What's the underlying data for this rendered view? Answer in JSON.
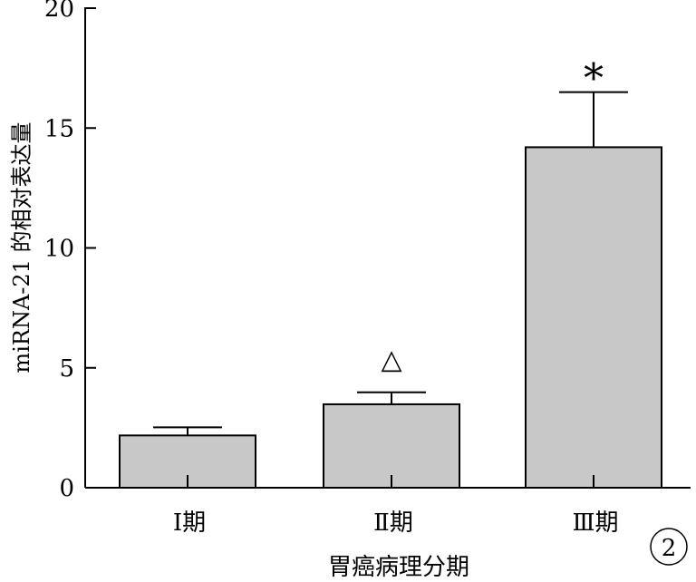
{
  "chart_data": {
    "type": "bar",
    "title": "",
    "xlabel": "胃癌病理分期",
    "ylabel": "miRNA-21 的相对表达量",
    "categories": [
      "Ⅰ期",
      "Ⅱ期",
      "Ⅲ期"
    ],
    "values": [
      2.18,
      3.48,
      14.2
    ],
    "error_upper": [
      2.52,
      3.98,
      16.5
    ],
    "annotations": [
      "",
      "△",
      "*"
    ],
    "ylim": [
      0,
      20
    ],
    "yticks": [
      0,
      5,
      10,
      15,
      20
    ],
    "ytick_labels": [
      "0",
      "5",
      "10",
      "15",
      "20"
    ],
    "grid": false,
    "bar_color": "#c8c8c8",
    "panel_label": "2"
  }
}
